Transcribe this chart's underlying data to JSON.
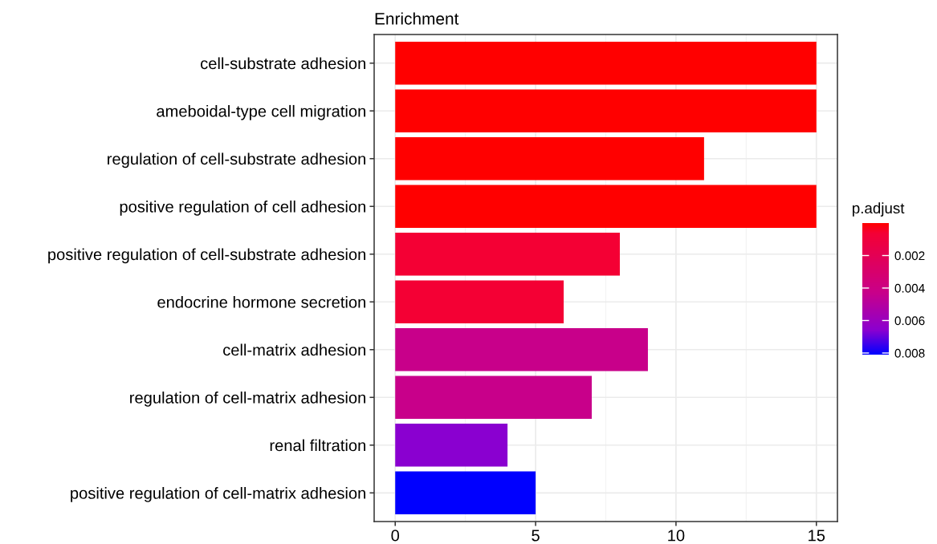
{
  "chart_data": {
    "type": "bar",
    "orientation": "horizontal",
    "title": "Enrichment",
    "categories": [
      "cell-substrate adhesion",
      "ameboidal-type cell migration",
      "regulation of cell-substrate adhesion",
      "positive regulation of cell adhesion",
      "positive regulation of cell-substrate adhesion",
      "endocrine hormone secretion",
      "cell-matrix adhesion",
      "regulation of cell-matrix adhesion",
      "renal filtration",
      "positive regulation of cell-matrix adhesion"
    ],
    "values": [
      15,
      15,
      11,
      15,
      8,
      6,
      9,
      7,
      4,
      5
    ],
    "colors": [
      "#ff0000",
      "#ff0000",
      "#ff0000",
      "#ff0000",
      "#f40034",
      "#f40034",
      "#c8008a",
      "#c8008a",
      "#8a00d0",
      "#0000ff"
    ],
    "cvalues": [
      0.0,
      0.0,
      0.0,
      0.0,
      0.0006,
      0.0006,
      0.0043,
      0.0043,
      0.0066,
      0.0081
    ],
    "clabel": "p.adjust",
    "clim": [
      0.0081,
      0.0
    ],
    "cticks": [
      0.002,
      0.004,
      0.006,
      0.008
    ],
    "xlim": [
      -0.75,
      15.75
    ],
    "xticks": [
      0,
      5,
      10,
      15
    ],
    "grid": true
  }
}
